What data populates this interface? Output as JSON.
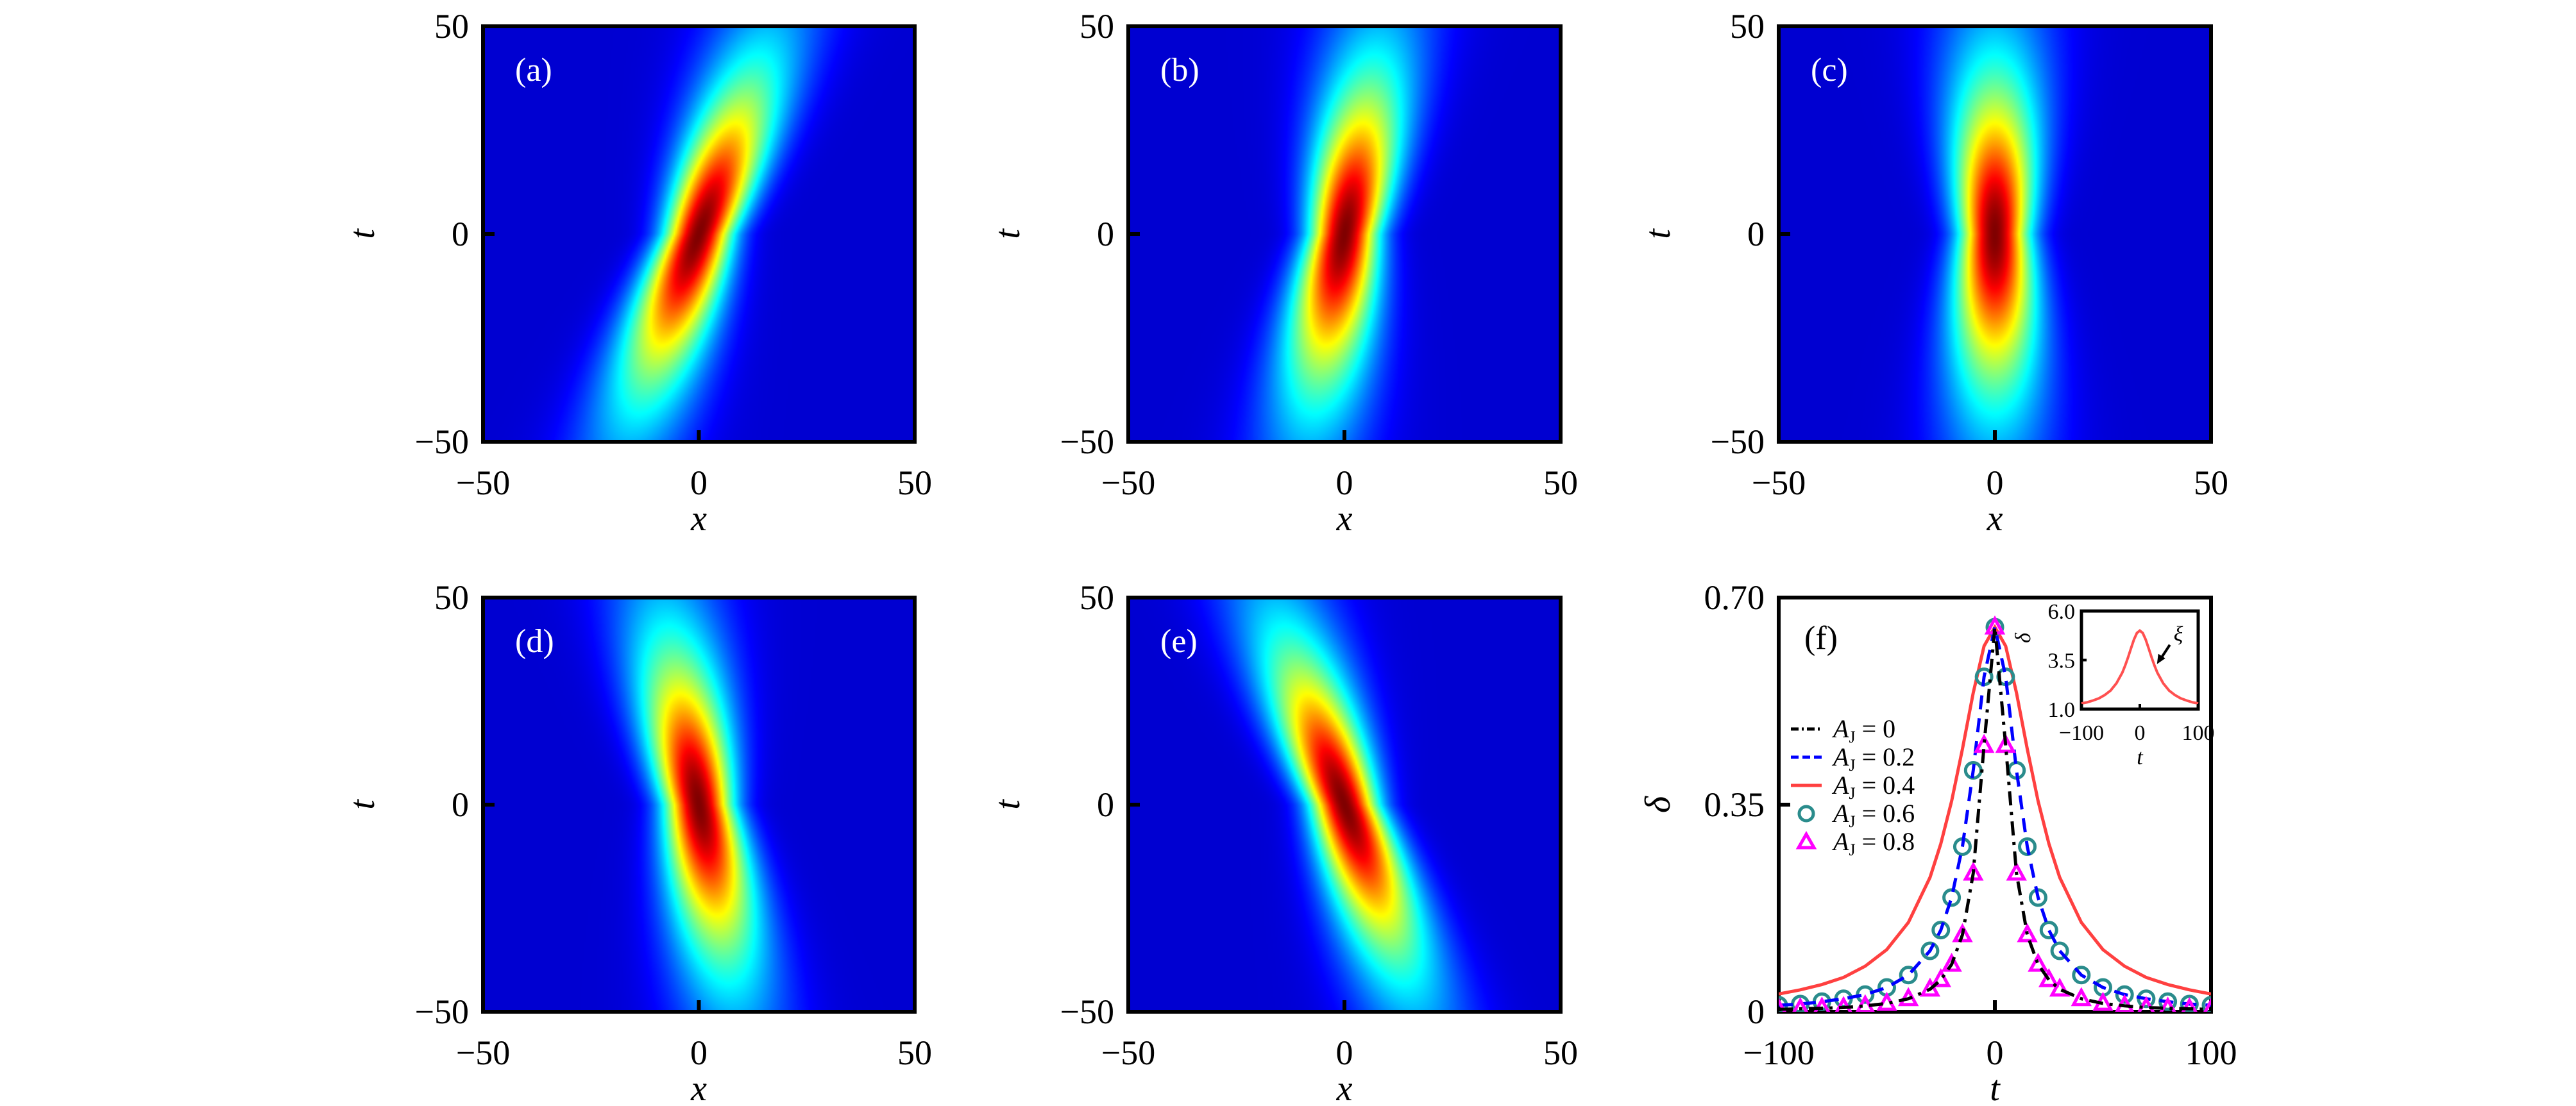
{
  "chart_data": [
    {
      "type": "heatmap",
      "panel_label": "(a)",
      "xlabel": "x",
      "ylabel": "t",
      "xlim": [
        -50,
        50
      ],
      "ylim": [
        -50,
        50
      ],
      "xticks": [
        {
          "v": -50,
          "label": "−50"
        },
        {
          "v": 0,
          "label": "0"
        },
        {
          "v": 50,
          "label": "50"
        }
      ],
      "yticks": [
        {
          "v": -50,
          "label": "−50"
        },
        {
          "v": 0,
          "label": "0"
        },
        {
          "v": 50,
          "label": "50"
        }
      ],
      "colormap": "jet",
      "peak": {
        "x": 0,
        "t": 0
      },
      "ridge_x_at_t_50": 16
    },
    {
      "type": "heatmap",
      "panel_label": "(b)",
      "xlabel": "x",
      "ylabel": "t",
      "xlim": [
        -50,
        50
      ],
      "ylim": [
        -50,
        50
      ],
      "xticks": [
        {
          "v": -50,
          "label": "−50"
        },
        {
          "v": 0,
          "label": "0"
        },
        {
          "v": 50,
          "label": "50"
        }
      ],
      "yticks": [
        {
          "v": -50,
          "label": "−50"
        },
        {
          "v": 0,
          "label": "0"
        },
        {
          "v": 50,
          "label": "50"
        }
      ],
      "colormap": "jet",
      "peak": {
        "x": 0,
        "t": 0
      },
      "ridge_x_at_t_50": 8
    },
    {
      "type": "heatmap",
      "panel_label": "(c)",
      "xlabel": "x",
      "ylabel": "t",
      "xlim": [
        -50,
        50
      ],
      "ylim": [
        -50,
        50
      ],
      "xticks": [
        {
          "v": -50,
          "label": "−50"
        },
        {
          "v": 0,
          "label": "0"
        },
        {
          "v": 50,
          "label": "50"
        }
      ],
      "yticks": [
        {
          "v": -50,
          "label": "−50"
        },
        {
          "v": 0,
          "label": "0"
        },
        {
          "v": 50,
          "label": "50"
        }
      ],
      "colormap": "jet",
      "peak": {
        "x": 0,
        "t": 0
      },
      "ridge_x_at_t_50": 0
    },
    {
      "type": "heatmap",
      "panel_label": "(d)",
      "xlabel": "x",
      "ylabel": "t",
      "xlim": [
        -50,
        50
      ],
      "ylim": [
        -50,
        50
      ],
      "xticks": [
        {
          "v": -50,
          "label": "−50"
        },
        {
          "v": 0,
          "label": "0"
        },
        {
          "v": 50,
          "label": "50"
        }
      ],
      "yticks": [
        {
          "v": -50,
          "label": "−50"
        },
        {
          "v": 0,
          "label": "0"
        },
        {
          "v": 50,
          "label": "50"
        }
      ],
      "colormap": "jet",
      "peak": {
        "x": 0,
        "t": 0
      },
      "ridge_x_at_t_50": -8
    },
    {
      "type": "heatmap",
      "panel_label": "(e)",
      "xlabel": "x",
      "ylabel": "t",
      "xlim": [
        -50,
        50
      ],
      "ylim": [
        -50,
        50
      ],
      "xticks": [
        {
          "v": -50,
          "label": "−50"
        },
        {
          "v": 0,
          "label": "0"
        },
        {
          "v": 50,
          "label": "50"
        }
      ],
      "yticks": [
        {
          "v": -50,
          "label": "−50"
        },
        {
          "v": 0,
          "label": "0"
        },
        {
          "v": 50,
          "label": "50"
        }
      ],
      "colormap": "jet",
      "peak": {
        "x": 0,
        "t": 0
      },
      "ridge_x_at_t_50": -16
    },
    {
      "type": "line",
      "panel_label": "(f)",
      "xlabel": "t",
      "ylabel": "δ",
      "xlim": [
        -100,
        100
      ],
      "ylim": [
        0,
        0.7
      ],
      "xticks": [
        {
          "v": -100,
          "label": "−100"
        },
        {
          "v": 0,
          "label": "0"
        },
        {
          "v": 100,
          "label": "100"
        }
      ],
      "yticks": [
        {
          "v": 0,
          "label": "0"
        },
        {
          "v": 0.35,
          "label": "0.35"
        },
        {
          "v": 0.7,
          "label": "0.70"
        }
      ],
      "legend": "upper-left",
      "x": [
        -100,
        -90,
        -80,
        -70,
        -60,
        -50,
        -40,
        -30,
        -25,
        -20,
        -15,
        -10,
        -5,
        0,
        5,
        10,
        15,
        20,
        25,
        30,
        40,
        50,
        60,
        70,
        80,
        90,
        100
      ],
      "series": [
        {
          "name": "A_J = 0",
          "style": "dash-dot",
          "color": "#000000",
          "values": [
            0.004,
            0.005,
            0.006,
            0.007,
            0.01,
            0.014,
            0.022,
            0.038,
            0.054,
            0.08,
            0.13,
            0.234,
            0.45,
            0.65,
            0.45,
            0.234,
            0.13,
            0.08,
            0.054,
            0.038,
            0.022,
            0.014,
            0.01,
            0.007,
            0.006,
            0.005,
            0.004
          ]
        },
        {
          "name": "A_J = 0.2",
          "style": "dashed",
          "color": "#0000ff",
          "values": [
            0.011,
            0.013,
            0.017,
            0.022,
            0.029,
            0.041,
            0.062,
            0.103,
            0.138,
            0.193,
            0.279,
            0.408,
            0.566,
            0.65,
            0.566,
            0.408,
            0.279,
            0.193,
            0.138,
            0.103,
            0.062,
            0.041,
            0.029,
            0.022,
            0.017,
            0.013,
            0.011
          ]
        },
        {
          "name": "A_J = 0.4",
          "style": "solid",
          "color": "#ff4040",
          "values": [
            0.03,
            0.037,
            0.046,
            0.058,
            0.077,
            0.105,
            0.151,
            0.227,
            0.284,
            0.356,
            0.444,
            0.539,
            0.618,
            0.65,
            0.618,
            0.539,
            0.444,
            0.356,
            0.284,
            0.227,
            0.151,
            0.105,
            0.077,
            0.058,
            0.046,
            0.037,
            0.03
          ]
        },
        {
          "name": "A_J = 0.6",
          "style": "circle",
          "color": "#2a8c8c",
          "values": [
            0.011,
            0.013,
            0.017,
            0.022,
            0.029,
            0.041,
            0.062,
            0.103,
            0.138,
            0.193,
            0.279,
            0.408,
            0.566,
            0.65,
            0.566,
            0.408,
            0.279,
            0.193,
            0.138,
            0.103,
            0.062,
            0.041,
            0.029,
            0.022,
            0.017,
            0.013,
            0.011
          ]
        },
        {
          "name": "A_J = 0.8",
          "style": "triangle",
          "color": "#ff00ff",
          "values": [
            0.004,
            0.005,
            0.006,
            0.007,
            0.01,
            0.014,
            0.022,
            0.038,
            0.054,
            0.08,
            0.13,
            0.234,
            0.45,
            0.65,
            0.45,
            0.234,
            0.13,
            0.08,
            0.054,
            0.038,
            0.022,
            0.014,
            0.01,
            0.007,
            0.006,
            0.005,
            0.004
          ]
        }
      ],
      "inset": {
        "type": "line",
        "xlabel": "t",
        "ylabel": "δ",
        "xlim": [
          -100,
          100
        ],
        "ylim": [
          1.0,
          6.0
        ],
        "xticks": [
          {
            "v": -100,
            "label": "−100"
          },
          {
            "v": 0,
            "label": "0"
          },
          {
            "v": 100,
            "label": "100"
          }
        ],
        "yticks": [
          {
            "v": 1.0,
            "label": "1.0"
          },
          {
            "v": 3.5,
            "label": "3.5"
          },
          {
            "v": 6.0,
            "label": "6.0"
          }
        ],
        "color": "#ff5050",
        "x": [
          -100,
          -90,
          -80,
          -70,
          -60,
          -50,
          -40,
          -30,
          -25,
          -20,
          -15,
          -10,
          -5,
          0,
          5,
          10,
          15,
          20,
          25,
          30,
          40,
          50,
          60,
          70,
          80,
          90,
          100
        ],
        "values": [
          1.29,
          1.35,
          1.44,
          1.55,
          1.72,
          1.95,
          2.32,
          2.86,
          3.23,
          3.65,
          4.11,
          4.55,
          4.88,
          5.0,
          4.88,
          4.55,
          4.11,
          3.65,
          3.23,
          2.86,
          2.32,
          1.95,
          1.72,
          1.55,
          1.44,
          1.35,
          1.29
        ],
        "annotation": {
          "text": "ξ",
          "arrow_to_t": 25
        }
      }
    }
  ]
}
